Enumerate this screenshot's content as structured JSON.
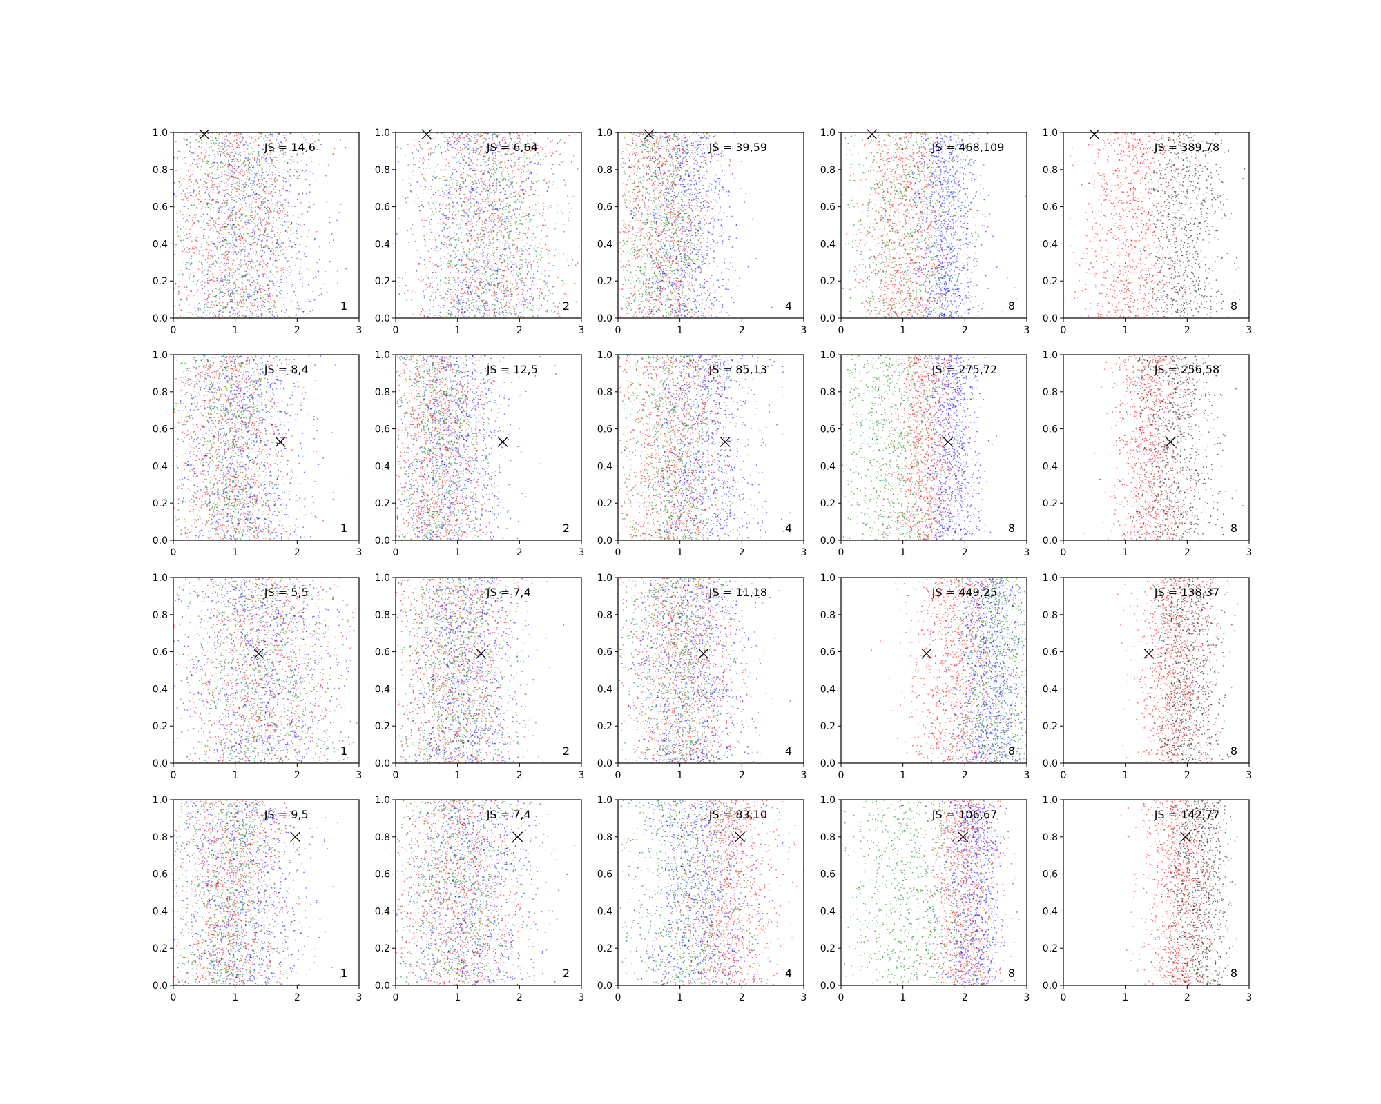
{
  "figure": {
    "rows": 4,
    "cols": 5
  },
  "colors": {
    "red": "#ff0000",
    "green": "#008000",
    "blue": "#0000ff",
    "black": "#000000"
  },
  "chart_data": [
    {
      "type": "scatter",
      "row": 0,
      "col": 0,
      "annotation": "JS = 14,6",
      "panel_label": "1",
      "marker": {
        "x": 0.5,
        "y": 0.99,
        "symbol": "x"
      },
      "xlim": [
        0,
        3
      ],
      "ylim": [
        0,
        1
      ],
      "xticks": [
        "0",
        "1",
        "2",
        "3"
      ],
      "yticks": [
        "0.0",
        "0.2",
        "0.4",
        "0.6",
        "0.8",
        "1.0"
      ],
      "series": [
        {
          "color": "#ff0000",
          "mean_x": 1.0,
          "sd_x": 0.55
        },
        {
          "color": "#008000",
          "mean_x": 1.0,
          "sd_x": 0.55
        },
        {
          "color": "#0000ff",
          "mean_x": 1.2,
          "sd_x": 0.6
        }
      ]
    },
    {
      "type": "scatter",
      "row": 0,
      "col": 1,
      "annotation": "JS = 6,64",
      "panel_label": "2",
      "marker": {
        "x": 0.5,
        "y": 0.99,
        "symbol": "x"
      },
      "xlim": [
        0,
        3
      ],
      "ylim": [
        0,
        1
      ],
      "xticks": [
        "0",
        "1",
        "2",
        "3"
      ],
      "yticks": [
        "0.0",
        "0.2",
        "0.4",
        "0.6",
        "0.8",
        "1.0"
      ],
      "series": [
        {
          "color": "#ff0000",
          "mean_x": 1.5,
          "sd_x": 0.6
        },
        {
          "color": "#008000",
          "mean_x": 1.5,
          "sd_x": 0.6
        },
        {
          "color": "#0000ff",
          "mean_x": 1.4,
          "sd_x": 0.55
        }
      ]
    },
    {
      "type": "scatter",
      "row": 0,
      "col": 2,
      "annotation": "JS = 39,59",
      "panel_label": "4",
      "marker": {
        "x": 0.5,
        "y": 0.99,
        "symbol": "x"
      },
      "xlim": [
        0,
        3
      ],
      "ylim": [
        0,
        1
      ],
      "xticks": [
        "0",
        "1",
        "2",
        "3"
      ],
      "yticks": [
        "0.0",
        "0.2",
        "0.4",
        "0.6",
        "0.8",
        "1.0"
      ],
      "series": [
        {
          "color": "#ff0000",
          "mean_x": 0.7,
          "sd_x": 0.4
        },
        {
          "color": "#008000",
          "mean_x": 0.7,
          "sd_x": 0.4
        },
        {
          "color": "#0000ff",
          "mean_x": 1.1,
          "sd_x": 0.4
        }
      ]
    },
    {
      "type": "scatter",
      "row": 0,
      "col": 3,
      "annotation": "JS = 468,109",
      "panel_label": "8",
      "marker": {
        "x": 0.5,
        "y": 0.99,
        "symbol": "x"
      },
      "xlim": [
        0,
        3
      ],
      "ylim": [
        0,
        1
      ],
      "xticks": [
        "0",
        "1",
        "2",
        "3"
      ],
      "yticks": [
        "0.0",
        "0.2",
        "0.4",
        "0.6",
        "0.8",
        "1.0"
      ],
      "series": [
        {
          "color": "#ff0000",
          "mean_x": 1.0,
          "sd_x": 0.35
        },
        {
          "color": "#008000",
          "mean_x": 1.1,
          "sd_x": 0.55
        },
        {
          "color": "#0000ff",
          "mean_x": 1.7,
          "sd_x": 0.25
        }
      ]
    },
    {
      "type": "scatter",
      "row": 0,
      "col": 4,
      "annotation": "JS = 389,78",
      "panel_label": "8",
      "marker": {
        "x": 0.5,
        "y": 0.99,
        "symbol": "x"
      },
      "xlim": [
        0,
        3
      ],
      "ylim": [
        0,
        1
      ],
      "xticks": [
        "0",
        "1",
        "2",
        "3"
      ],
      "yticks": [
        "0.0",
        "0.2",
        "0.4",
        "0.6",
        "0.8",
        "1.0"
      ],
      "series": [
        {
          "color": "#ff0000",
          "mean_x": 1.1,
          "sd_x": 0.4
        },
        {
          "color": "#000000",
          "mean_x": 1.9,
          "sd_x": 0.35
        }
      ]
    },
    {
      "type": "scatter",
      "row": 1,
      "col": 0,
      "annotation": "JS = 8,4",
      "panel_label": "1",
      "marker": {
        "x": 1.73,
        "y": 0.53,
        "symbol": "x"
      },
      "xlim": [
        0,
        3
      ],
      "ylim": [
        0,
        1
      ],
      "xticks": [
        "0",
        "1",
        "2",
        "3"
      ],
      "yticks": [
        "0.0",
        "0.2",
        "0.4",
        "0.6",
        "0.8",
        "1.0"
      ],
      "series": [
        {
          "color": "#ff0000",
          "mean_x": 0.9,
          "sd_x": 0.45
        },
        {
          "color": "#008000",
          "mean_x": 0.9,
          "sd_x": 0.45
        },
        {
          "color": "#0000ff",
          "mean_x": 1.1,
          "sd_x": 0.55
        }
      ]
    },
    {
      "type": "scatter",
      "row": 1,
      "col": 1,
      "annotation": "JS = 12,5",
      "panel_label": "2",
      "marker": {
        "x": 1.73,
        "y": 0.53,
        "symbol": "x"
      },
      "xlim": [
        0,
        3
      ],
      "ylim": [
        0,
        1
      ],
      "xticks": [
        "0",
        "1",
        "2",
        "3"
      ],
      "yticks": [
        "0.0",
        "0.2",
        "0.4",
        "0.6",
        "0.8",
        "1.0"
      ],
      "series": [
        {
          "color": "#ff0000",
          "mean_x": 0.7,
          "sd_x": 0.4
        },
        {
          "color": "#008000",
          "mean_x": 0.7,
          "sd_x": 0.4
        },
        {
          "color": "#0000ff",
          "mean_x": 0.9,
          "sd_x": 0.5
        }
      ]
    },
    {
      "type": "scatter",
      "row": 1,
      "col": 2,
      "annotation": "JS = 85,13",
      "panel_label": "4",
      "marker": {
        "x": 1.73,
        "y": 0.53,
        "symbol": "x"
      },
      "xlim": [
        0,
        3
      ],
      "ylim": [
        0,
        1
      ],
      "xticks": [
        "0",
        "1",
        "2",
        "3"
      ],
      "yticks": [
        "0.0",
        "0.2",
        "0.4",
        "0.6",
        "0.8",
        "1.0"
      ],
      "series": [
        {
          "color": "#ff0000",
          "mean_x": 0.9,
          "sd_x": 0.45
        },
        {
          "color": "#008000",
          "mean_x": 0.9,
          "sd_x": 0.45
        },
        {
          "color": "#0000ff",
          "mean_x": 1.4,
          "sd_x": 0.45
        }
      ]
    },
    {
      "type": "scatter",
      "row": 1,
      "col": 3,
      "annotation": "JS = 275,72",
      "panel_label": "8",
      "marker": {
        "x": 1.73,
        "y": 0.53,
        "symbol": "x"
      },
      "xlim": [
        0,
        3
      ],
      "ylim": [
        0,
        1
      ],
      "xticks": [
        "0",
        "1",
        "2",
        "3"
      ],
      "yticks": [
        "0.0",
        "0.2",
        "0.4",
        "0.6",
        "0.8",
        "1.0"
      ],
      "series": [
        {
          "color": "#008000",
          "mean_x": 0.8,
          "sd_x": 0.45
        },
        {
          "color": "#ff0000",
          "mean_x": 1.35,
          "sd_x": 0.25
        },
        {
          "color": "#0000ff",
          "mean_x": 1.8,
          "sd_x": 0.22
        }
      ]
    },
    {
      "type": "scatter",
      "row": 1,
      "col": 4,
      "annotation": "JS = 256,58",
      "panel_label": "8",
      "marker": {
        "x": 1.73,
        "y": 0.53,
        "symbol": "x"
      },
      "xlim": [
        0,
        3
      ],
      "ylim": [
        0,
        1
      ],
      "xticks": [
        "0",
        "1",
        "2",
        "3"
      ],
      "yticks": [
        "0.0",
        "0.2",
        "0.4",
        "0.6",
        "0.8",
        "1.0"
      ],
      "series": [
        {
          "color": "#ff0000",
          "mean_x": 1.4,
          "sd_x": 0.3
        },
        {
          "color": "#000000",
          "mean_x": 1.75,
          "sd_x": 0.35
        }
      ]
    },
    {
      "type": "scatter",
      "row": 2,
      "col": 0,
      "annotation": "JS = 5,5",
      "panel_label": "1",
      "marker": {
        "x": 1.38,
        "y": 0.59,
        "symbol": "x"
      },
      "xlim": [
        0,
        3
      ],
      "ylim": [
        0,
        1
      ],
      "xticks": [
        "0",
        "1",
        "2",
        "3"
      ],
      "yticks": [
        "0.0",
        "0.2",
        "0.4",
        "0.6",
        "0.8",
        "1.0"
      ],
      "series": [
        {
          "color": "#ff0000",
          "mean_x": 1.4,
          "sd_x": 0.65
        },
        {
          "color": "#008000",
          "mean_x": 1.4,
          "sd_x": 0.65
        },
        {
          "color": "#0000ff",
          "mean_x": 1.4,
          "sd_x": 0.65
        }
      ]
    },
    {
      "type": "scatter",
      "row": 2,
      "col": 1,
      "annotation": "JS = 7,4",
      "panel_label": "2",
      "marker": {
        "x": 1.38,
        "y": 0.59,
        "symbol": "x"
      },
      "xlim": [
        0,
        3
      ],
      "ylim": [
        0,
        1
      ],
      "xticks": [
        "0",
        "1",
        "2",
        "3"
      ],
      "yticks": [
        "0.0",
        "0.2",
        "0.4",
        "0.6",
        "0.8",
        "1.0"
      ],
      "series": [
        {
          "color": "#ff0000",
          "mean_x": 0.95,
          "sd_x": 0.45
        },
        {
          "color": "#008000",
          "mean_x": 0.95,
          "sd_x": 0.45
        },
        {
          "color": "#0000ff",
          "mean_x": 1.1,
          "sd_x": 0.5
        }
      ]
    },
    {
      "type": "scatter",
      "row": 2,
      "col": 2,
      "annotation": "JS = 11,18",
      "panel_label": "4",
      "marker": {
        "x": 1.38,
        "y": 0.59,
        "symbol": "x"
      },
      "xlim": [
        0,
        3
      ],
      "ylim": [
        0,
        1
      ],
      "xticks": [
        "0",
        "1",
        "2",
        "3"
      ],
      "yticks": [
        "0.0",
        "0.2",
        "0.4",
        "0.6",
        "0.8",
        "1.0"
      ],
      "series": [
        {
          "color": "#ff0000",
          "mean_x": 1.0,
          "sd_x": 0.45
        },
        {
          "color": "#008000",
          "mean_x": 1.0,
          "sd_x": 0.45
        },
        {
          "color": "#0000ff",
          "mean_x": 1.2,
          "sd_x": 0.5
        }
      ]
    },
    {
      "type": "scatter",
      "row": 2,
      "col": 3,
      "annotation": "JS = 449,25",
      "panel_label": "8",
      "marker": {
        "x": 1.38,
        "y": 0.59,
        "symbol": "x"
      },
      "xlim": [
        0,
        3
      ],
      "ylim": [
        0,
        1
      ],
      "xticks": [
        "0",
        "1",
        "2",
        "3"
      ],
      "yticks": [
        "0.0",
        "0.2",
        "0.4",
        "0.6",
        "0.8",
        "1.0"
      ],
      "series": [
        {
          "color": "#ff0000",
          "mean_x": 1.8,
          "sd_x": 0.35
        },
        {
          "color": "#008000",
          "mean_x": 2.5,
          "sd_x": 0.35
        },
        {
          "color": "#0000ff",
          "mean_x": 2.4,
          "sd_x": 0.3
        }
      ]
    },
    {
      "type": "scatter",
      "row": 2,
      "col": 4,
      "annotation": "JS = 138,37",
      "panel_label": "8",
      "marker": {
        "x": 1.38,
        "y": 0.59,
        "symbol": "x"
      },
      "xlim": [
        0,
        3
      ],
      "ylim": [
        0,
        1
      ],
      "xticks": [
        "0",
        "1",
        "2",
        "3"
      ],
      "yticks": [
        "0.0",
        "0.2",
        "0.4",
        "0.6",
        "0.8",
        "1.0"
      ],
      "series": [
        {
          "color": "#ff0000",
          "mean_x": 1.8,
          "sd_x": 0.3
        },
        {
          "color": "#000000",
          "mean_x": 2.0,
          "sd_x": 0.28
        }
      ]
    },
    {
      "type": "scatter",
      "row": 3,
      "col": 0,
      "annotation": "JS = 9,5",
      "panel_label": "1",
      "marker": {
        "x": 1.97,
        "y": 0.8,
        "symbol": "x"
      },
      "xlim": [
        0,
        3
      ],
      "ylim": [
        0,
        1
      ],
      "xticks": [
        "0",
        "1",
        "2",
        "3"
      ],
      "yticks": [
        "0.0",
        "0.2",
        "0.4",
        "0.6",
        "0.8",
        "1.0"
      ],
      "series": [
        {
          "color": "#ff0000",
          "mean_x": 0.9,
          "sd_x": 0.45
        },
        {
          "color": "#008000",
          "mean_x": 0.9,
          "sd_x": 0.45
        },
        {
          "color": "#0000ff",
          "mean_x": 1.1,
          "sd_x": 0.55
        }
      ]
    },
    {
      "type": "scatter",
      "row": 3,
      "col": 1,
      "annotation": "JS = 7,4",
      "panel_label": "2",
      "marker": {
        "x": 1.97,
        "y": 0.8,
        "symbol": "x"
      },
      "xlim": [
        0,
        3
      ],
      "ylim": [
        0,
        1
      ],
      "xticks": [
        "0",
        "1",
        "2",
        "3"
      ],
      "yticks": [
        "0.0",
        "0.2",
        "0.4",
        "0.6",
        "0.8",
        "1.0"
      ],
      "series": [
        {
          "color": "#ff0000",
          "mean_x": 1.0,
          "sd_x": 0.5
        },
        {
          "color": "#008000",
          "mean_x": 1.0,
          "sd_x": 0.5
        },
        {
          "color": "#0000ff",
          "mean_x": 1.2,
          "sd_x": 0.55
        }
      ]
    },
    {
      "type": "scatter",
      "row": 3,
      "col": 2,
      "annotation": "JS = 83,10",
      "panel_label": "4",
      "marker": {
        "x": 1.97,
        "y": 0.8,
        "symbol": "x"
      },
      "xlim": [
        0,
        3
      ],
      "ylim": [
        0,
        1
      ],
      "xticks": [
        "0",
        "1",
        "2",
        "3"
      ],
      "yticks": [
        "0.0",
        "0.2",
        "0.4",
        "0.6",
        "0.8",
        "1.0"
      ],
      "series": [
        {
          "color": "#008000",
          "mean_x": 1.1,
          "sd_x": 0.55
        },
        {
          "color": "#0000ff",
          "mean_x": 1.3,
          "sd_x": 0.45
        },
        {
          "color": "#ff0000",
          "mean_x": 1.8,
          "sd_x": 0.4
        }
      ]
    },
    {
      "type": "scatter",
      "row": 3,
      "col": 3,
      "annotation": "JS = 106,67",
      "panel_label": "8",
      "marker": {
        "x": 1.97,
        "y": 0.8,
        "symbol": "x"
      },
      "xlim": [
        0,
        3
      ],
      "ylim": [
        0,
        1
      ],
      "xticks": [
        "0",
        "1",
        "2",
        "3"
      ],
      "yticks": [
        "0.0",
        "0.2",
        "0.4",
        "0.6",
        "0.8",
        "1.0"
      ],
      "series": [
        {
          "color": "#008000",
          "mean_x": 1.1,
          "sd_x": 0.55
        },
        {
          "color": "#ff0000",
          "mean_x": 2.0,
          "sd_x": 0.25
        },
        {
          "color": "#0000ff",
          "mean_x": 2.15,
          "sd_x": 0.25
        }
      ]
    },
    {
      "type": "scatter",
      "row": 3,
      "col": 4,
      "annotation": "JS = 142,77",
      "panel_label": "8",
      "marker": {
        "x": 1.97,
        "y": 0.8,
        "symbol": "x"
      },
      "xlim": [
        0,
        3
      ],
      "ylim": [
        0,
        1
      ],
      "xticks": [
        "0",
        "1",
        "2",
        "3"
      ],
      "yticks": [
        "0.0",
        "0.2",
        "0.4",
        "0.6",
        "0.8",
        "1.0"
      ],
      "series": [
        {
          "color": "#ff0000",
          "mean_x": 1.85,
          "sd_x": 0.3
        },
        {
          "color": "#000000",
          "mean_x": 2.2,
          "sd_x": 0.25
        }
      ]
    }
  ]
}
